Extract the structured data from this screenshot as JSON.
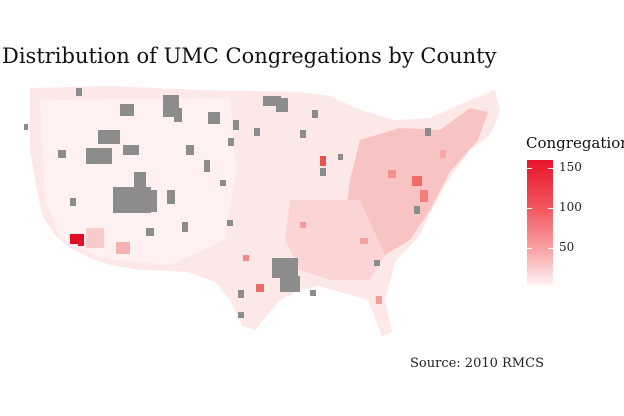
{
  "title": "Distribution of UMC Congregations by County",
  "caption": "Source: 2010 RMCS",
  "legend": {
    "title": "Congregations",
    "ticks": [
      {
        "label": "150",
        "value": 150
      },
      {
        "label": "100",
        "value": 100
      },
      {
        "label": "50",
        "value": 50
      }
    ],
    "min": 0,
    "max": 158,
    "colors": {
      "high": "#e8132a",
      "low": "#fff6f6",
      "missing": "#8c8c8c"
    }
  }
}
